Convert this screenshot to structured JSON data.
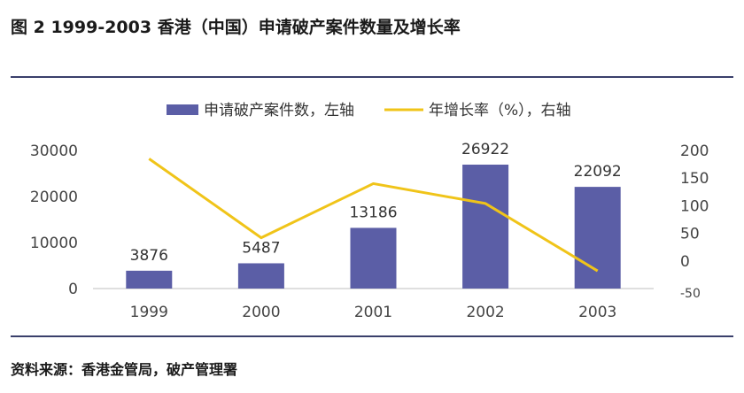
{
  "title": "图 2 1999-2003 香港（中国）申请破产案件数量及增长率",
  "source": "资料来源：香港金管局，破产管理署",
  "chart_data": {
    "type": "bar",
    "categories": [
      "1999",
      "2000",
      "2001",
      "2002",
      "2003"
    ],
    "series": [
      {
        "name": "申请破产案件数，左轴",
        "type": "bar",
        "axis": "left",
        "values": [
          3876,
          5487,
          13186,
          26922,
          22092
        ],
        "color": "#5b5ea6",
        "data_labels": [
          "3876",
          "5487",
          "13186",
          "26922",
          "22092"
        ]
      },
      {
        "name": "年增长率（%），右轴",
        "type": "line",
        "axis": "right",
        "values": [
          185,
          42,
          140,
          104,
          -18
        ],
        "color": "#f0c419"
      }
    ],
    "y_left": {
      "ylim": [
        0,
        30000
      ],
      "ticks": [
        "0",
        "10000",
        "20000",
        "30000"
      ]
    },
    "y_right": {
      "ylim": [
        -50,
        200
      ],
      "ticks": [
        "-50",
        "0",
        "50",
        "100",
        "150",
        "200"
      ]
    },
    "legend": "top-center",
    "grid": false
  }
}
